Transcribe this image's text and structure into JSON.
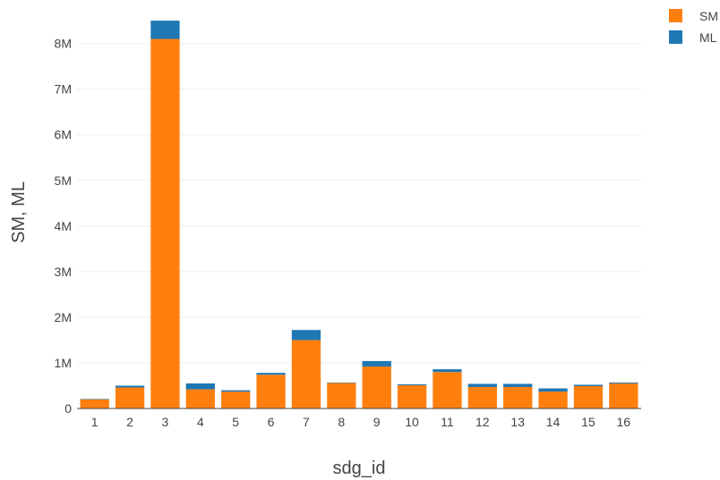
{
  "chart_data": {
    "type": "bar",
    "stacked": true,
    "xlabel": "sdg_id",
    "ylabel": "SM, ML",
    "categories": [
      "1",
      "2",
      "3",
      "4",
      "5",
      "6",
      "7",
      "8",
      "9",
      "10",
      "11",
      "12",
      "13",
      "14",
      "15",
      "16"
    ],
    "series": [
      {
        "name": "SM",
        "color": "#ff7f0e",
        "values": [
          200000,
          460000,
          8100000,
          420000,
          370000,
          740000,
          1500000,
          560000,
          920000,
          510000,
          800000,
          470000,
          470000,
          370000,
          490000,
          550000
        ]
      },
      {
        "name": "ML",
        "color": "#1f77b4",
        "values": [
          10000,
          40000,
          400000,
          130000,
          30000,
          40000,
          220000,
          10000,
          120000,
          20000,
          60000,
          70000,
          70000,
          70000,
          30000,
          20000
        ]
      }
    ],
    "ylim": [
      0,
      8600000
    ],
    "yticks": [
      0,
      1000000,
      2000000,
      3000000,
      4000000,
      5000000,
      6000000,
      7000000,
      8000000
    ],
    "ytick_labels": [
      "0",
      "1M",
      "2M",
      "3M",
      "4M",
      "5M",
      "6M",
      "7M",
      "8M"
    ],
    "grid": true,
    "legend_position": "top-right"
  }
}
